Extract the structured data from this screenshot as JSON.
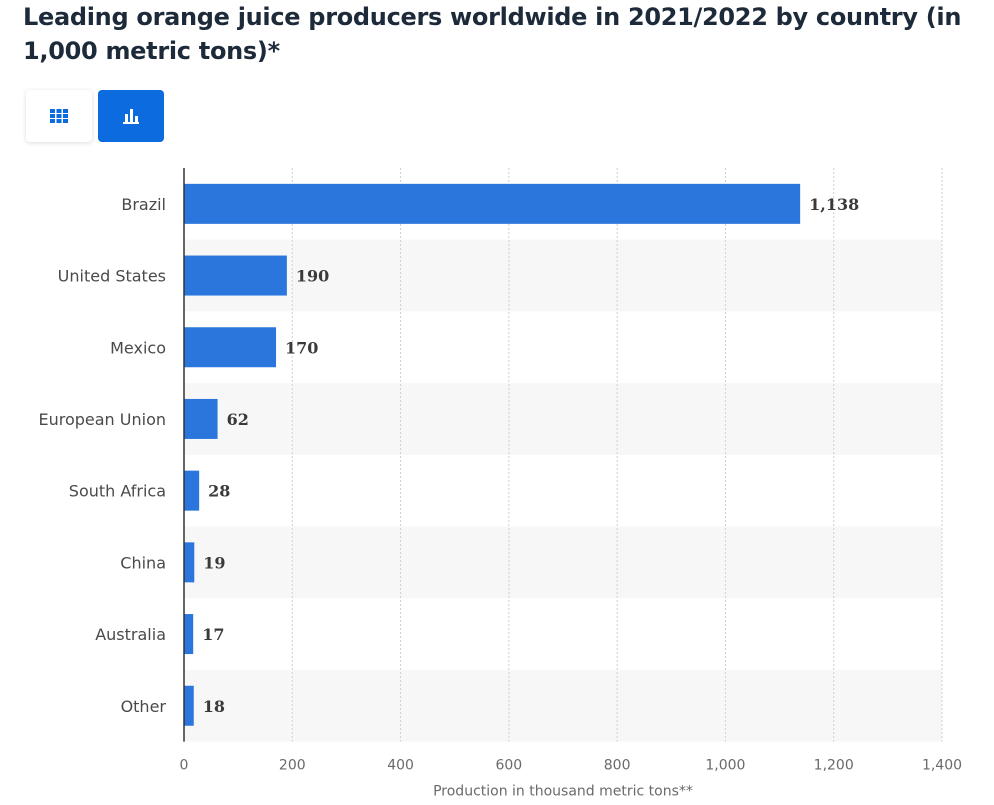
{
  "header": {
    "title": "Leading orange juice producers worldwide in 2021/2022 by country (in 1,000 metric tons)*"
  },
  "view_toggle": {
    "table_icon": "table-grid-icon",
    "chart_icon": "bar-chart-icon",
    "active": "chart",
    "accent_color": "#0d6be0"
  },
  "chart_data": {
    "type": "bar",
    "orientation": "horizontal",
    "categories": [
      "Brazil",
      "United States",
      "Mexico",
      "European Union",
      "South Africa",
      "China",
      "Australia",
      "Other"
    ],
    "values": [
      1138,
      190,
      170,
      62,
      28,
      19,
      17,
      18
    ],
    "value_labels": [
      "1,138",
      "190",
      "170",
      "62",
      "28",
      "19",
      "17",
      "18"
    ],
    "xlabel": "Production in thousand metric tons**",
    "ylabel": "",
    "xlim": [
      0,
      1400
    ],
    "xticks": [
      0,
      200,
      400,
      600,
      800,
      1000,
      1200,
      1400
    ],
    "xtick_labels": [
      "0",
      "200",
      "400",
      "600",
      "800",
      "1,000",
      "1,200",
      "1,400"
    ],
    "grid": true,
    "bar_color": "#2a76dc"
  }
}
